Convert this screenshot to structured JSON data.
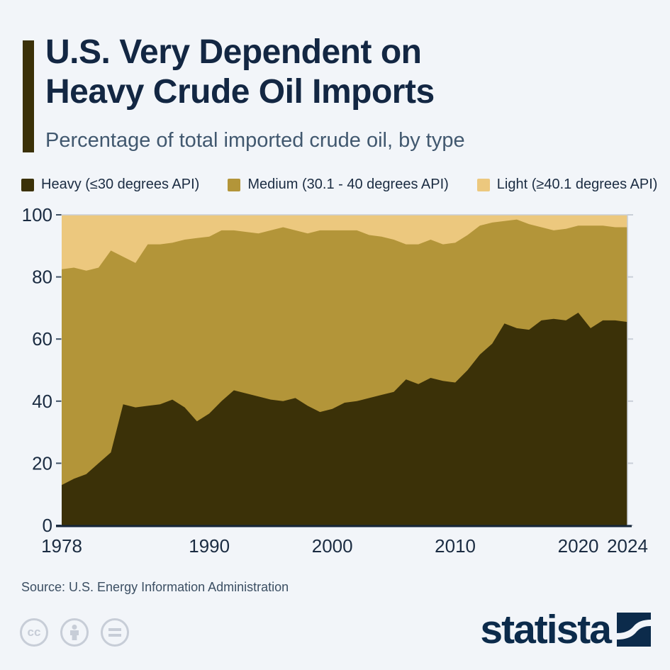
{
  "header": {
    "title_line1": "U.S. Very Dependent on",
    "title_line2": "Heavy Crude Oil Imports",
    "subtitle": "Percentage of total imported crude oil, by type",
    "accent_bar_color": "#3b3108"
  },
  "legend": [
    {
      "label": "Heavy (≤30 degrees API)",
      "color": "#3b3108"
    },
    {
      "label": "Medium (30.1 - 40 degrees API)",
      "color": "#b39539"
    },
    {
      "label": "Light (≥40.1 degrees API)",
      "color": "#ecc87e"
    }
  ],
  "chart_data": {
    "type": "area",
    "stacked": true,
    "x": [
      1978,
      1979,
      1980,
      1981,
      1982,
      1983,
      1984,
      1985,
      1986,
      1987,
      1988,
      1989,
      1990,
      1991,
      1992,
      1993,
      1994,
      1995,
      1996,
      1997,
      1998,
      1999,
      2000,
      2001,
      2002,
      2003,
      2004,
      2005,
      2006,
      2007,
      2008,
      2009,
      2010,
      2011,
      2012,
      2013,
      2014,
      2015,
      2016,
      2017,
      2018,
      2019,
      2020,
      2021,
      2022,
      2023,
      2024
    ],
    "series": [
      {
        "name": "Heavy (≤30 degrees API)",
        "color": "#3b3108",
        "values": [
          13,
          15,
          16.5,
          20,
          23.5,
          39,
          38,
          38.5,
          39,
          40.5,
          38,
          33.5,
          36,
          40,
          43.5,
          42.5,
          41.5,
          40.5,
          40,
          41,
          38.5,
          36.5,
          37.5,
          39.5,
          40,
          41,
          42,
          43,
          47,
          45.5,
          47.5,
          46.5,
          46,
          50,
          55,
          58.5,
          65,
          63.5,
          63,
          66,
          66.5,
          66,
          68.5,
          63.5,
          66,
          66,
          65.5
        ]
      },
      {
        "name": "Medium (30.1 - 40 degrees API)",
        "color": "#b39539",
        "values": [
          69.5,
          68,
          65.5,
          63,
          65,
          47.5,
          46.5,
          52,
          51.5,
          50.5,
          54,
          59,
          57,
          55,
          51.5,
          52,
          52.5,
          54.5,
          56,
          54,
          55.5,
          58.5,
          57.5,
          55.5,
          55,
          52.5,
          51,
          49,
          43.5,
          45,
          44.5,
          44,
          45,
          43.5,
          41.5,
          39,
          33,
          35,
          34,
          30,
          28.5,
          29.5,
          28,
          33,
          30.5,
          30,
          30.5
        ]
      },
      {
        "name": "Light (≥40.1 degrees API)",
        "color": "#ecc87e",
        "values": [
          17.5,
          17,
          18,
          17,
          11.5,
          13.5,
          15.5,
          9.5,
          9.5,
          9,
          8,
          7.5,
          7,
          5,
          5,
          5.5,
          6,
          5,
          4,
          5,
          6,
          5,
          5,
          5,
          5,
          6.5,
          7,
          8,
          9.5,
          9.5,
          8,
          9.5,
          9,
          6.5,
          3.5,
          2.5,
          2,
          1.5,
          3,
          4,
          5,
          4.5,
          3.5,
          3.5,
          3.5,
          4,
          4
        ]
      }
    ],
    "xticks": [
      1978,
      1990,
      2000,
      2010,
      2020,
      2024
    ],
    "yticks": [
      0,
      20,
      40,
      60,
      80,
      100
    ],
    "ylim": [
      0,
      100
    ],
    "grid": false,
    "legend_position": "top"
  },
  "axis_colors": {
    "tick_label": "#1b2c42",
    "left_tick": "#3e5065",
    "spine_light": "#c9cfd8",
    "baseline": "#16263a"
  },
  "footer": {
    "source": "Source: U.S. Energy Information Administration",
    "license_icons": [
      "cc",
      "attribution",
      "nd"
    ],
    "logo_text": "statista",
    "logo_color": "#0c2b4b"
  }
}
